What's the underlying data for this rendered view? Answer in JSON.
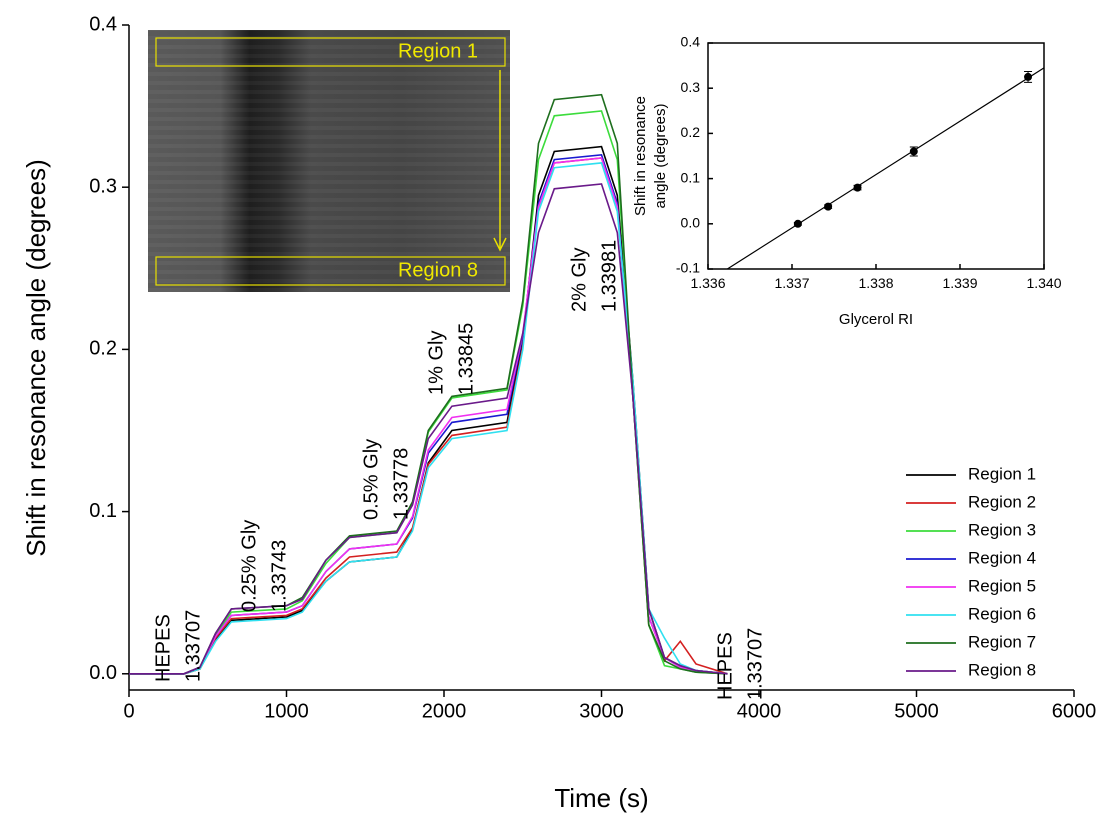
{
  "chart_data": [
    {
      "type": "line",
      "xlabel": "Time (s)",
      "ylabel": "Shift in resonance angle (degrees)",
      "xlim": [
        0,
        6000
      ],
      "ylim": [
        -0.01,
        0.4
      ],
      "xticks": [
        0,
        1000,
        2000,
        3000,
        4000,
        5000,
        6000
      ],
      "yticks": [
        {
          "value": 0,
          "label": "0.0"
        },
        0.1,
        0.2,
        0.3,
        0.4
      ],
      "legend": "lower right",
      "x": [
        0,
        350,
        450,
        550,
        650,
        1000,
        1100,
        1250,
        1400,
        1700,
        1800,
        1900,
        2050,
        2400,
        2500,
        2600,
        2700,
        3000,
        3100,
        3200,
        3300,
        3400,
        3500,
        3600,
        3800
      ],
      "series": [
        {
          "name": "Region 1",
          "color": "#000000",
          "values": [
            0,
            0,
            0.003,
            0.021,
            0.033,
            0.035,
            0.039,
            0.057,
            0.069,
            0.072,
            0.089,
            0.13,
            0.15,
            0.155,
            0.206,
            0.295,
            0.322,
            0.325,
            0.295,
            0.18,
            0.04,
            0.01,
            0.005,
            0.002,
            0
          ]
        },
        {
          "name": "Region 2",
          "color": "#d42020",
          "values": [
            0,
            0,
            0.003,
            0.022,
            0.034,
            0.036,
            0.04,
            0.059,
            0.072,
            0.075,
            0.09,
            0.129,
            0.147,
            0.152,
            0.202,
            0.288,
            0.315,
            0.318,
            0.29,
            0.17,
            0.03,
            0.008,
            0.02,
            0.006,
            0
          ]
        },
        {
          "name": "Region 3",
          "color": "#3cdc3c",
          "values": [
            0,
            0,
            0.004,
            0.024,
            0.038,
            0.04,
            0.045,
            0.068,
            0.084,
            0.087,
            0.105,
            0.149,
            0.17,
            0.175,
            0.227,
            0.317,
            0.344,
            0.347,
            0.317,
            0.17,
            0.03,
            0.005,
            0.003,
            0.001,
            0
          ]
        },
        {
          "name": "Region 4",
          "color": "#1a1ad0",
          "values": [
            0,
            0,
            0.004,
            0.023,
            0.036,
            0.038,
            0.042,
            0.063,
            0.077,
            0.08,
            0.096,
            0.136,
            0.155,
            0.16,
            0.208,
            0.29,
            0.317,
            0.32,
            0.29,
            0.17,
            0.035,
            0.01,
            0.004,
            0.002,
            0
          ]
        },
        {
          "name": "Region 5",
          "color": "#f030f0",
          "values": [
            0,
            0,
            0.004,
            0.023,
            0.036,
            0.038,
            0.042,
            0.063,
            0.077,
            0.08,
            0.097,
            0.138,
            0.158,
            0.163,
            0.21,
            0.288,
            0.315,
            0.318,
            0.288,
            0.17,
            0.035,
            0.01,
            0.004,
            0.002,
            0
          ]
        },
        {
          "name": "Region 6",
          "color": "#30e0f0",
          "values": [
            0,
            0,
            0.003,
            0.02,
            0.032,
            0.034,
            0.038,
            0.057,
            0.069,
            0.072,
            0.088,
            0.127,
            0.145,
            0.15,
            0.2,
            0.285,
            0.312,
            0.315,
            0.285,
            0.18,
            0.04,
            0.022,
            0.006,
            0.002,
            0
          ]
        },
        {
          "name": "Region 7",
          "color": "#1e6e1e",
          "values": [
            0,
            0,
            0.004,
            0.025,
            0.04,
            0.042,
            0.047,
            0.07,
            0.085,
            0.088,
            0.106,
            0.15,
            0.171,
            0.176,
            0.23,
            0.327,
            0.354,
            0.357,
            0.327,
            0.17,
            0.03,
            0.008,
            0.003,
            0.001,
            0
          ]
        },
        {
          "name": "Region 8",
          "color": "#6a1a8a",
          "values": [
            0,
            0,
            0.004,
            0.025,
            0.04,
            0.042,
            0.046,
            0.07,
            0.084,
            0.087,
            0.104,
            0.145,
            0.165,
            0.17,
            0.21,
            0.272,
            0.299,
            0.302,
            0.272,
            0.17,
            0.04,
            0.01,
            0.005,
            0.002,
            0
          ]
        }
      ],
      "annotations": [
        {
          "lines": [
            "HEPES",
            "1.33707"
          ]
        },
        {
          "lines": [
            "0.25% Gly",
            "1.33743"
          ]
        },
        {
          "lines": [
            "0.5% Gly",
            "1.33778"
          ]
        },
        {
          "lines": [
            "1% Gly",
            "1.33845"
          ]
        },
        {
          "lines": [
            "2% Gly",
            "1.33981"
          ]
        },
        {
          "lines": [
            "HEPES",
            "1.33707"
          ]
        }
      ]
    },
    {
      "type": "scatter",
      "xlabel": "Glycerol RI",
      "ylabel": [
        "Shift in resonance",
        "angle (degrees)"
      ],
      "xlim": [
        1.336,
        1.34
      ],
      "ylim": [
        -0.1,
        0.4
      ],
      "xticks": [
        1.336,
        1.337,
        1.338,
        1.339,
        {
          "value": 1.34,
          "label": "1.340"
        }
      ],
      "yticks": [
        -0.1,
        {
          "value": 0,
          "label": "0.0"
        },
        0.1,
        0.2,
        0.3,
        0.4
      ],
      "color": "#000000",
      "x": [
        1.33707,
        1.33743,
        1.33778,
        1.33845,
        1.33981
      ],
      "y": [
        0,
        0.038,
        0.08,
        0.16,
        0.325
      ],
      "errors": [
        0.003,
        0.004,
        0.005,
        0.01,
        0.012
      ],
      "fit_line": {
        "x": [
          1.33623,
          1.34
        ],
        "y": [
          -0.1,
          0.345
        ]
      }
    }
  ],
  "image": {
    "labels": [
      "Region 1",
      "Region 8"
    ]
  }
}
